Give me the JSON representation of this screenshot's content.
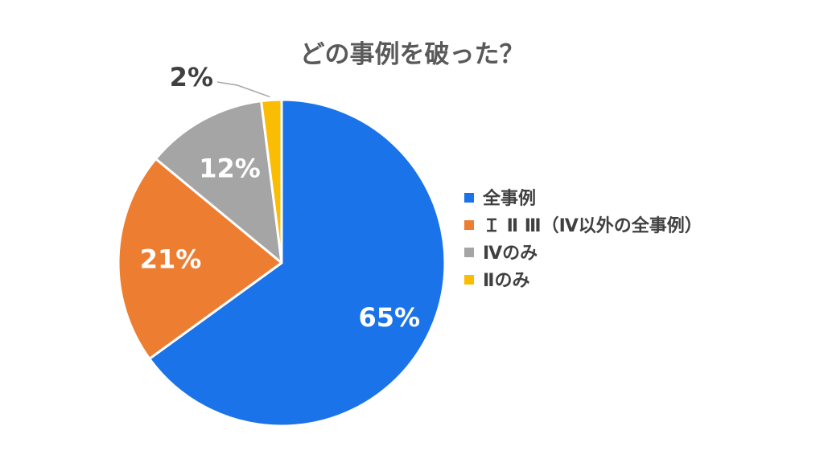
{
  "chart_data": {
    "type": "pie",
    "title": "どの事例を破った？",
    "categories": [
      "全事例",
      "ⅠⅡⅢ（Ⅳ以外の全事例）",
      "Ⅳのみ",
      "Ⅱのみ"
    ],
    "legend_labels": [
      "全事例",
      "Ｉ Ⅱ Ⅲ（Ⅳ以外の全事例）",
      "Ⅳのみ",
      "Ⅱのみ"
    ],
    "values": [
      65,
      21,
      12,
      2
    ],
    "data_labels": [
      "65%",
      "21%",
      "12%",
      "2%"
    ],
    "colors": [
      "#1a73e8",
      "#ed7d31",
      "#a5a5a5",
      "#fbbc04"
    ],
    "start_position": "12 o'clock",
    "direction": "clockwise",
    "legend_position": "right"
  }
}
